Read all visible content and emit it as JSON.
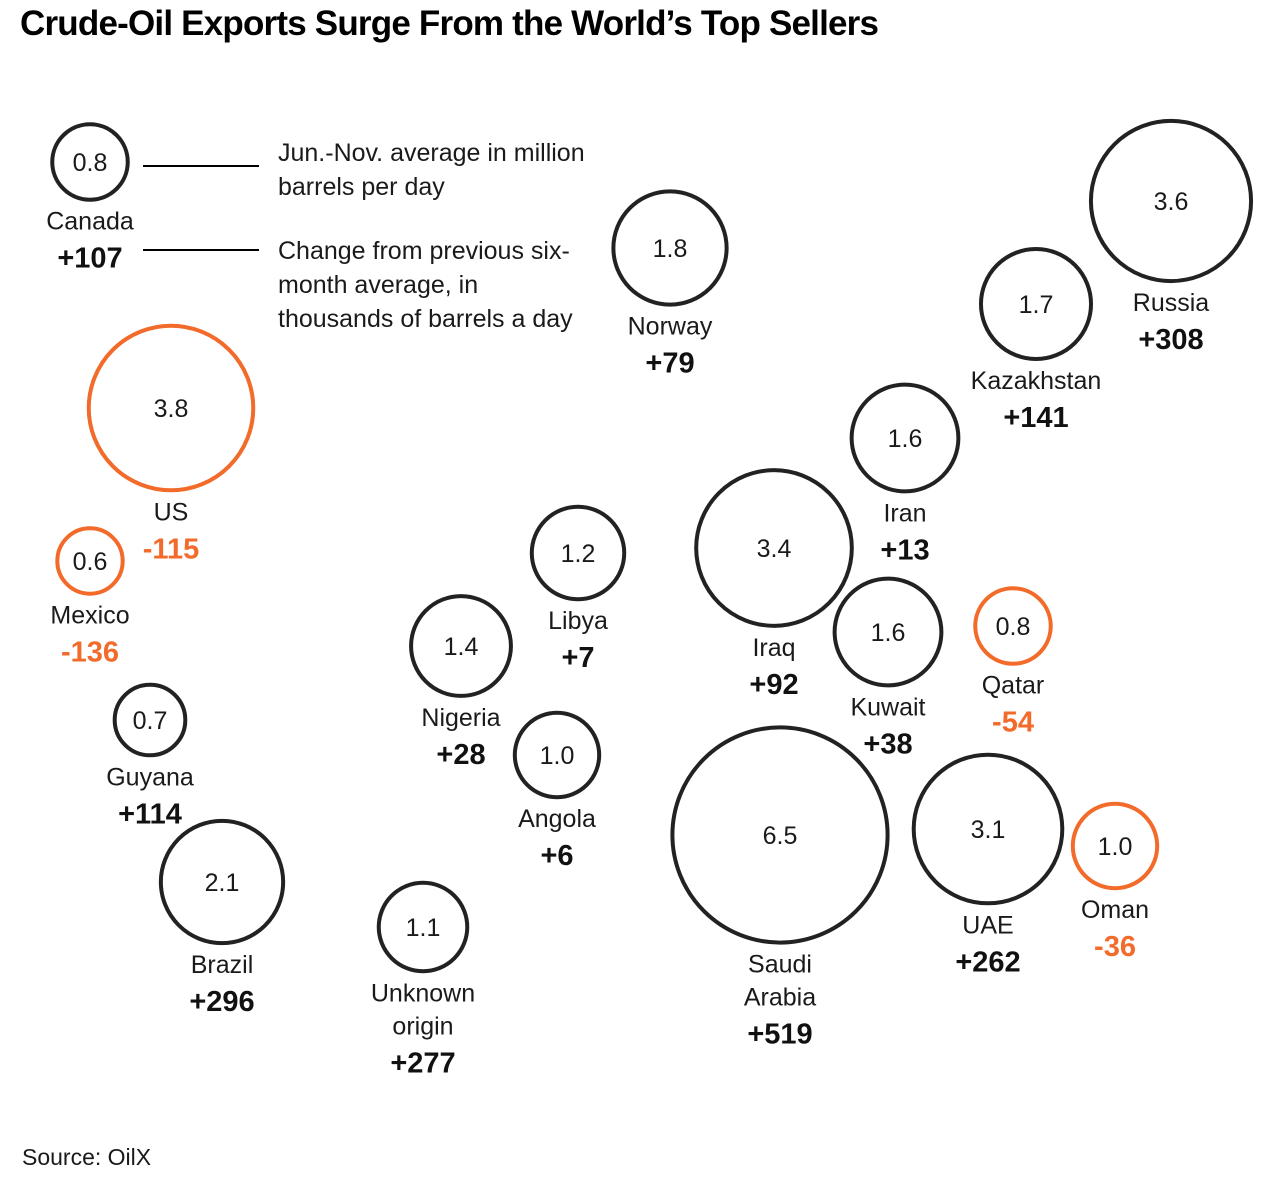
{
  "title": "Crude-Oil Exports Surge From the World’s Top Sellers",
  "legend": {
    "value_note": "Jun.-Nov. average in million barrels per day",
    "change_note": "Change from previous six-month average, in thousands of barrels a day"
  },
  "source": "Source: OilX",
  "colors": {
    "increase": "#222222",
    "decrease": "#f26b2a"
  },
  "chart_data": {
    "type": "bubble",
    "title": "Crude-Oil Exports Surge From the World’s Top Sellers",
    "size_unit": "million barrels per day (Jun.-Nov. average)",
    "change_unit": "thousands of barrels a day vs previous six-month average",
    "items": [
      {
        "name": "Canada",
        "value": 0.8,
        "value_label": "0.8",
        "change": 107,
        "change_label": "+107"
      },
      {
        "name": "US",
        "value": 3.8,
        "value_label": "3.8",
        "change": -115,
        "change_label": "-115"
      },
      {
        "name": "Mexico",
        "value": 0.6,
        "value_label": "0.6",
        "change": -136,
        "change_label": "-136"
      },
      {
        "name": "Guyana",
        "value": 0.7,
        "value_label": "0.7",
        "change": 114,
        "change_label": "+114"
      },
      {
        "name": "Brazil",
        "value": 2.1,
        "value_label": "2.1",
        "change": 296,
        "change_label": "+296"
      },
      {
        "name": "Unknown origin",
        "value": 1.1,
        "value_label": "1.1",
        "change": 277,
        "change_label": "+277"
      },
      {
        "name": "Nigeria",
        "value": 1.4,
        "value_label": "1.4",
        "change": 28,
        "change_label": "+28"
      },
      {
        "name": "Libya",
        "value": 1.2,
        "value_label": "1.2",
        "change": 7,
        "change_label": "+7"
      },
      {
        "name": "Angola",
        "value": 1.0,
        "value_label": "1.0",
        "change": 6,
        "change_label": "+6"
      },
      {
        "name": "Norway",
        "value": 1.8,
        "value_label": "1.8",
        "change": 79,
        "change_label": "+79"
      },
      {
        "name": "Iraq",
        "value": 3.4,
        "value_label": "3.4",
        "change": 92,
        "change_label": "+92"
      },
      {
        "name": "Saudi Arabia",
        "value": 6.5,
        "value_label": "6.5",
        "change": 519,
        "change_label": "+519"
      },
      {
        "name": "Iran",
        "value": 1.6,
        "value_label": "1.6",
        "change": 13,
        "change_label": "+13"
      },
      {
        "name": "Kuwait",
        "value": 1.6,
        "value_label": "1.6",
        "change": 38,
        "change_label": "+38"
      },
      {
        "name": "Kazakhstan",
        "value": 1.7,
        "value_label": "1.7",
        "change": 141,
        "change_label": "+141"
      },
      {
        "name": "Russia",
        "value": 3.6,
        "value_label": "3.6",
        "change": 308,
        "change_label": "+308"
      },
      {
        "name": "Qatar",
        "value": 0.8,
        "value_label": "0.8",
        "change": -54,
        "change_label": "-54"
      },
      {
        "name": "UAE",
        "value": 3.1,
        "value_label": "3.1",
        "change": 262,
        "change_label": "+262"
      },
      {
        "name": "Oman",
        "value": 1.0,
        "value_label": "1.0",
        "change": -36,
        "change_label": "-36"
      }
    ]
  }
}
